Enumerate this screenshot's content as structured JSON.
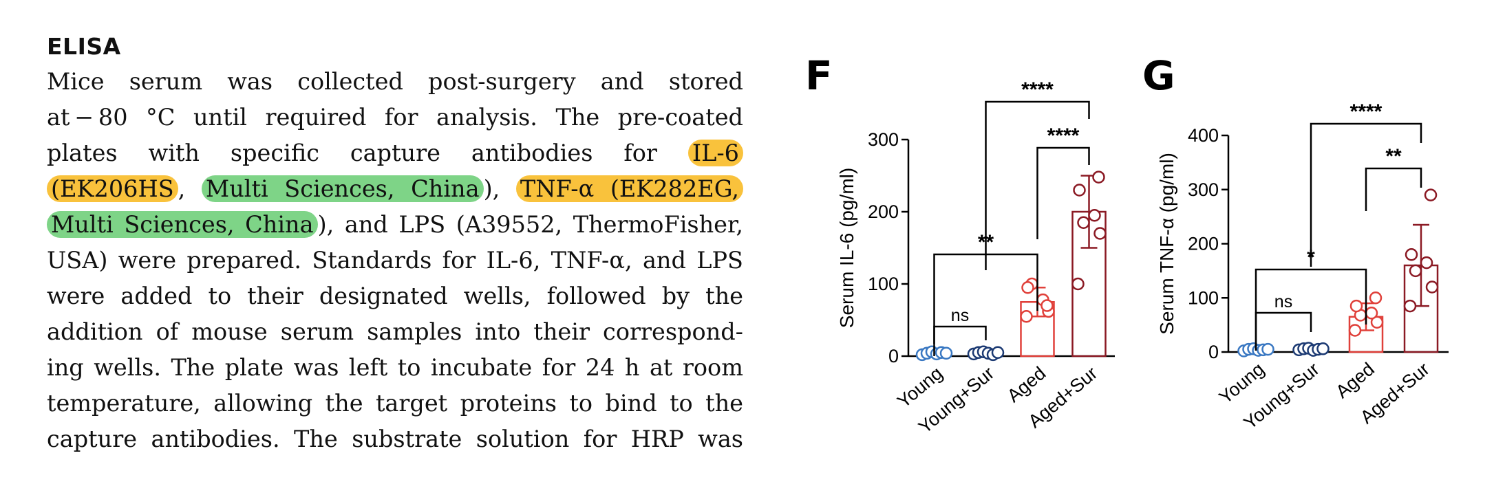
{
  "text_section": {
    "heading": "ELISA",
    "lines": [
      "Mice serum was collected post-surgery and stored",
      "at − 80 °C until required for analysis. The pre-coated",
      [
        "plates with specific capture antibodies for ",
        {
          "h": "y",
          "t": "IL-6"
        }
      ],
      [
        {
          "h": "y",
          "t": "(EK206HS"
        },
        ", ",
        {
          "h": "g",
          "t": "Multi Sciences, China"
        },
        "), ",
        {
          "h": "y",
          "t": "TNF-α (EK282EG,"
        }
      ],
      [
        {
          "h": "g",
          "t": "Multi Sciences, China"
        },
        "), and LPS (A39552, ThermoFisher,"
      ],
      "USA) were prepared. Standards for IL-6, TNF-α, and LPS",
      "were added to their designated wells, followed by the",
      "addition of mouse serum samples into their correspond-",
      "ing wells. The plate was left to incubate for 24 h at room",
      "temperature, allowing the target proteins to bind to the",
      "capture antibodies. The substrate solution for HRP was"
    ],
    "highlight_colors": {
      "yellow": "#f9c23c",
      "green": "#7ed487"
    }
  },
  "chart_data": [
    {
      "panel": "F",
      "type": "bar",
      "categories": [
        "Young",
        "Young+Sur",
        "Aged",
        "Aged+Sur"
      ],
      "ylabel": "Serum IL-6 (pg/ml)",
      "ylim": [
        0,
        300
      ],
      "yticks": [
        0,
        100,
        200,
        300
      ],
      "means": [
        4,
        4,
        75,
        200
      ],
      "sd": [
        3,
        3,
        20,
        50
      ],
      "points": [
        [
          2,
          4,
          6,
          3,
          5,
          4
        ],
        [
          3,
          5,
          6,
          4,
          2,
          5
        ],
        [
          55,
          62,
          100,
          78,
          95,
          70
        ],
        [
          100,
          170,
          185,
          195,
          230,
          248
        ]
      ],
      "colors": [
        "#3a78c2",
        "#1c3a73",
        "#e0403a",
        "#8b1a24"
      ],
      "comparisons": [
        {
          "label": "ns",
          "from": 0,
          "to": 1
        },
        {
          "label": "**",
          "from": 0,
          "to": 2
        },
        {
          "label": "****",
          "from": 2,
          "to": 3
        },
        {
          "label": "****",
          "from": 1,
          "to": 3
        }
      ]
    },
    {
      "panel": "G",
      "type": "bar",
      "categories": [
        "Young",
        "Young+Sur",
        "Aged",
        "Aged+Sur"
      ],
      "ylabel": "Serum TNF-α (pg/ml)",
      "ylim": [
        0,
        400
      ],
      "yticks": [
        0,
        100,
        200,
        300,
        400
      ],
      "means": [
        4,
        5,
        65,
        160
      ],
      "sd": [
        3,
        3,
        25,
        75
      ],
      "points": [
        [
          2,
          5,
          6,
          3,
          4,
          5
        ],
        [
          4,
          6,
          7,
          3,
          5,
          6
        ],
        [
          40,
          55,
          68,
          72,
          85,
          100
        ],
        [
          85,
          120,
          150,
          165,
          180,
          290
        ]
      ],
      "colors": [
        "#3a78c2",
        "#1c3a73",
        "#e0403a",
        "#8b1a24"
      ],
      "comparisons": [
        {
          "label": "ns",
          "from": 0,
          "to": 1
        },
        {
          "label": "*",
          "from": 0,
          "to": 2
        },
        {
          "label": "**",
          "from": 2,
          "to": 3
        },
        {
          "label": "****",
          "from": 1,
          "to": 3
        }
      ]
    }
  ]
}
